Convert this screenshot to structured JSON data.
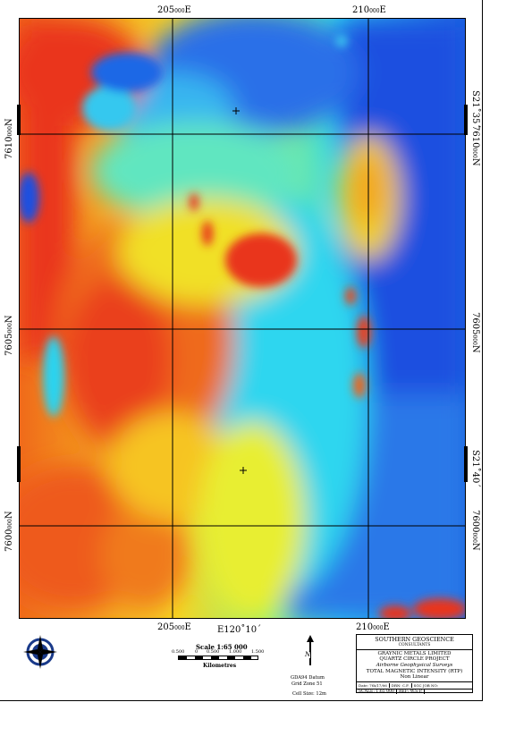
{
  "map": {
    "grid_labels": {
      "top_east_1": "205",
      "top_east_1_sup": "000",
      "top_east_1_suffix": "E",
      "top_east_2": "210",
      "top_east_2_sup": "000",
      "top_east_2_suffix": "E",
      "bottom_east_1": "205",
      "bottom_east_1_sup": "000",
      "bottom_east_1_suffix": "E",
      "bottom_east_2": "210",
      "bottom_east_2_sup": "000",
      "bottom_east_2_suffix": "E",
      "bottom_lon": "E120˚10´",
      "left_north_1": "7610",
      "left_north_2": "7605",
      "left_north_3": "7600",
      "north_sup": "000",
      "north_suffix": "N",
      "right_north_1": "7610",
      "right_north_2": "7605",
      "right_north_3": "7600",
      "right_lat_1": "S21˚35´",
      "right_lat_2": "S21˚40´"
    }
  },
  "scale": {
    "title": "Scale 1:65 000",
    "ticks": [
      "0.500",
      "0",
      "0.500",
      "1.000",
      "1.500"
    ],
    "unit": "Kilometres"
  },
  "north_arrow": {
    "label": "N"
  },
  "datum": {
    "line1": "GDA94 Datum",
    "line2": "Grid Zone 51",
    "line3": "Cell Size: 12m"
  },
  "title_block": {
    "company": "SOUTHERN GEOSCIENCE",
    "company_sub": "CONSULTANTS",
    "client": "GRAYNIC METALS LIMITED",
    "project": "QUARTZ CIRCLE PROJECT",
    "survey": "Airborne Geophysical Surveys",
    "product": "TOTAL MAGNETIC INTENSITY (RTP)",
    "stretch": "Non Linear",
    "row1": [
      "Date: 7th/17/06",
      "DRN: C.F.",
      "SGC JOB NO:"
    ],
    "row2": [
      "SCALE: 1:65 000",
      "REF: W.S.P."
    ]
  },
  "colors": {
    "high": "#e8321a",
    "mid_high": "#f3a21a",
    "mid": "#f6ea22",
    "mid_low": "#1fe0e8",
    "low": "#1a5fe0"
  }
}
